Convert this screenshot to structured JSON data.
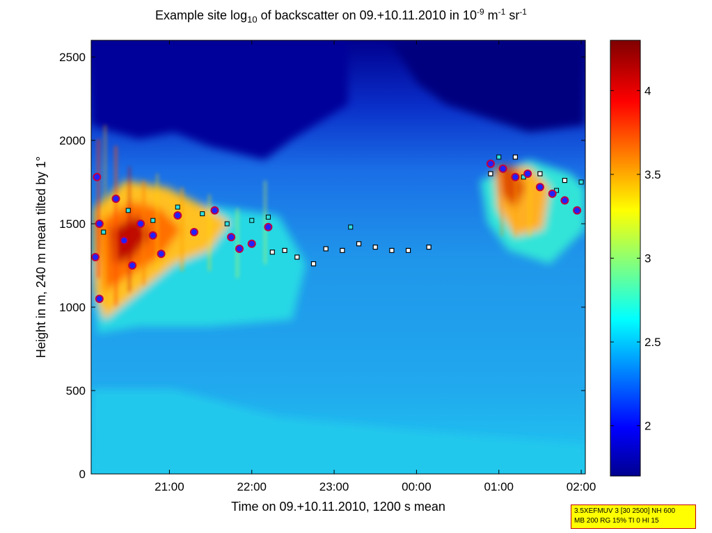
{
  "chart_data": {
    "type": "heatmap",
    "title": {
      "prefix": "Example site log",
      "sub": "10",
      "middle": " of backscatter on 09.+10.11.2010 in 10",
      "exp1": "-9",
      "unit1": " m",
      "exp2": "-1",
      "unit2": " sr",
      "exp3": "-1"
    },
    "xlabel": "Time on 09.+10.11.2010, 1200 s mean",
    "ylabel": "Height in m, 240 m mean tilted by 1°",
    "xlim_hours": [
      20.05,
      26.05
    ],
    "ylim": [
      0,
      2600
    ],
    "x_ticks": [
      {
        "label": "21:00",
        "t": 21
      },
      {
        "label": "22:00",
        "t": 22
      },
      {
        "label": "23:00",
        "t": 23
      },
      {
        "label": "00:00",
        "t": 24
      },
      {
        "label": "01:00",
        "t": 25
      },
      {
        "label": "02:00",
        "t": 26
      }
    ],
    "y_ticks": [
      0,
      500,
      1000,
      1500,
      2000,
      2500
    ],
    "colorbar": {
      "range": [
        1.7,
        4.3
      ],
      "ticks": [
        2,
        2.5,
        3,
        3.5,
        4
      ],
      "colormap": "jet"
    },
    "layer_tops_black": [
      {
        "t": 22.25,
        "h": 1330
      },
      {
        "t": 22.4,
        "h": 1340
      },
      {
        "t": 22.55,
        "h": 1300
      },
      {
        "t": 22.75,
        "h": 1260
      },
      {
        "t": 22.9,
        "h": 1350
      },
      {
        "t": 23.1,
        "h": 1340
      },
      {
        "t": 23.3,
        "h": 1380
      },
      {
        "t": 23.5,
        "h": 1360
      },
      {
        "t": 23.7,
        "h": 1340
      },
      {
        "t": 23.9,
        "h": 1340
      },
      {
        "t": 24.15,
        "h": 1360
      },
      {
        "t": 24.9,
        "h": 1800
      },
      {
        "t": 25.2,
        "h": 1900
      },
      {
        "t": 25.5,
        "h": 1800
      },
      {
        "t": 25.8,
        "h": 1760
      }
    ],
    "layer_tops_cyan": [
      {
        "t": 20.2,
        "h": 1450
      },
      {
        "t": 20.5,
        "h": 1580
      },
      {
        "t": 20.8,
        "h": 1520
      },
      {
        "t": 21.1,
        "h": 1600
      },
      {
        "t": 21.4,
        "h": 1560
      },
      {
        "t": 21.7,
        "h": 1500
      },
      {
        "t": 22.0,
        "h": 1520
      },
      {
        "t": 22.2,
        "h": 1540
      },
      {
        "t": 23.2,
        "h": 1480
      },
      {
        "t": 25.0,
        "h": 1900
      },
      {
        "t": 25.3,
        "h": 1780
      },
      {
        "t": 25.7,
        "h": 1700
      },
      {
        "t": 26.0,
        "h": 1750
      }
    ],
    "cloud_base_markers": [
      {
        "t": 20.12,
        "h": 1780
      },
      {
        "t": 20.15,
        "h": 1500
      },
      {
        "t": 20.1,
        "h": 1300
      },
      {
        "t": 20.15,
        "h": 1050
      },
      {
        "t": 20.35,
        "h": 1650
      },
      {
        "t": 20.45,
        "h": 1400
      },
      {
        "t": 20.55,
        "h": 1250
      },
      {
        "t": 20.65,
        "h": 1500
      },
      {
        "t": 20.8,
        "h": 1430
      },
      {
        "t": 20.9,
        "h": 1320
      },
      {
        "t": 21.1,
        "h": 1550
      },
      {
        "t": 21.3,
        "h": 1450
      },
      {
        "t": 21.55,
        "h": 1580
      },
      {
        "t": 21.75,
        "h": 1420
      },
      {
        "t": 21.85,
        "h": 1350
      },
      {
        "t": 22.0,
        "h": 1380
      },
      {
        "t": 22.2,
        "h": 1480
      },
      {
        "t": 24.9,
        "h": 1860
      },
      {
        "t": 25.05,
        "h": 1830
      },
      {
        "t": 25.2,
        "h": 1780
      },
      {
        "t": 25.35,
        "h": 1800
      },
      {
        "t": 25.5,
        "h": 1720
      },
      {
        "t": 25.65,
        "h": 1680
      },
      {
        "t": 25.8,
        "h": 1640
      },
      {
        "t": 25.95,
        "h": 1580
      }
    ]
  },
  "param_box": {
    "line1": "3.5XEFMUV 3 [30 2500] NH 600",
    "line2": "MB 200 RG 15% TI 0 HI 15"
  }
}
